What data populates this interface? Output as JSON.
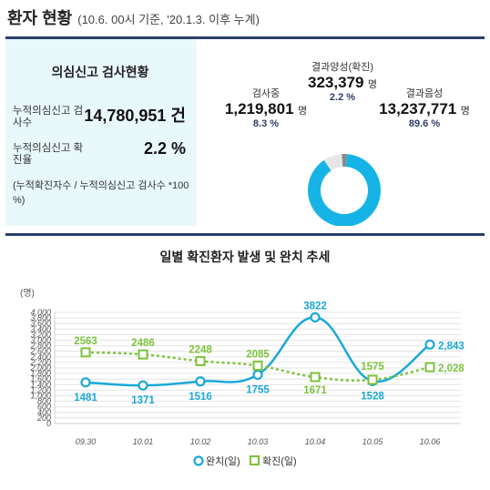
{
  "header": {
    "title": "환자 현황",
    "subtitle": "(10.6. 00시 기준, '20.1.3. 이후 누계)"
  },
  "test_status": {
    "heading": "의심신고 검사현황",
    "cumulative_tests_label": "누적의심신고 검사수",
    "cumulative_tests_value": "14,780,951 건",
    "positive_rate_label": "누적의심신고 확진율",
    "positive_rate_value": "2.2 %",
    "note": "(누적확진자수 / 누적의심신고 검사수 *100 %)"
  },
  "donut": {
    "testing": {
      "label": "검사중",
      "value": "1,219,801",
      "unit": "명",
      "pct": "8.3 %",
      "share": 8.3,
      "color": "#e6e6e6"
    },
    "positive": {
      "label": "결과양성(확진)",
      "value": "323,379",
      "unit": "명",
      "pct": "2.2 %",
      "share": 2.2,
      "color": "#8a8a8a"
    },
    "negative": {
      "label": "결과음성",
      "value": "13,237,771",
      "unit": "명",
      "pct": "89.6 %",
      "share": 89.6,
      "color": "#16b4e6"
    }
  },
  "chart_data": {
    "type": "line",
    "title": "일별 확진환자 발생 및 완치 추세",
    "ylabel": "(명)",
    "ylim": [
      0,
      4000
    ],
    "yticks": [
      "0",
      "200",
      "400",
      "600",
      "800",
      "1,000",
      "1,200",
      "1,400",
      "1,600",
      "1,800",
      "2,000",
      "2,200",
      "2,400",
      "2,600",
      "2,800",
      "3,000",
      "3,200",
      "3,400",
      "3,600",
      "3,800",
      "4,000"
    ],
    "categories": [
      "09.30",
      "10.01",
      "10.02",
      "10.03",
      "10.04",
      "10.05",
      "10.06"
    ],
    "series": [
      {
        "name": "완치(일)",
        "color": "#1aa8d8",
        "style": "solid-circle",
        "values": [
          1481,
          1371,
          1516,
          1755,
          3822,
          1528,
          2843
        ],
        "labels": [
          "1481",
          "1371",
          "1516",
          "1755",
          "3822",
          "1528",
          "2,843"
        ]
      },
      {
        "name": "확진(일)",
        "color": "#7dc23c",
        "style": "dashed-square",
        "values": [
          2563,
          2486,
          2248,
          2085,
          1671,
          1575,
          2028
        ],
        "labels": [
          "2563",
          "2486",
          "2248",
          "2085",
          "1671",
          "1575",
          "2,028"
        ]
      }
    ],
    "grid": true,
    "legend_position": "bottom"
  }
}
